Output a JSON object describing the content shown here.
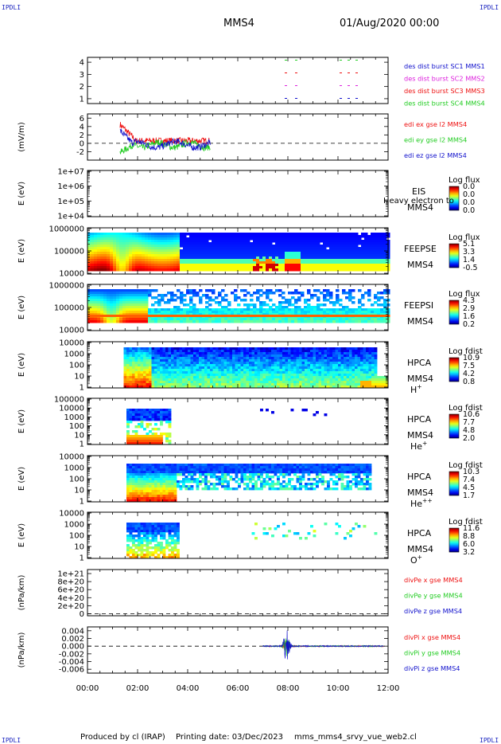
{
  "corners": {
    "top_left": "IPDLI",
    "top_right": "IPDLI",
    "bottom_left": "IPDLI",
    "bottom_right": "IPDLI"
  },
  "header": {
    "spacecraft": "MMS4",
    "datetime": "01/Aug/2020 00:00"
  },
  "footer": {
    "produced_by": "Produced by cl (IRAP)",
    "printing_date": "Printing date: 03/Dec/2023",
    "script_name": "mms_mms4_srvy_vue_web2.cl"
  },
  "colors": {
    "red": "#ee1111",
    "green": "#22cc22",
    "blue": "#1111cc",
    "magenta": "#dd22dd",
    "orange": "#ff8800"
  },
  "chart_data": [
    {
      "id": "dist",
      "type": "line",
      "ylabel": "",
      "ylim": [
        0.6,
        4.4
      ],
      "yticks": [
        "1",
        "2",
        "3",
        "4"
      ],
      "legend": [
        {
          "label": "des dist burst SC1 MMS1",
          "color": "#1111cc"
        },
        {
          "label": "des dist burst SC2 MMS2",
          "color": "#dd22dd"
        },
        {
          "label": "des dist burst SC3 MMS3",
          "color": "#ee1111"
        },
        {
          "label": "des dist burst SC4 MMS4",
          "color": "#22cc22"
        }
      ]
    },
    {
      "id": "edi",
      "type": "line",
      "ylabel": "(mV/m)",
      "ylim": [
        -4,
        7
      ],
      "yticks": [
        "6",
        "4",
        "2",
        "0",
        "-2"
      ],
      "x_hours_range": [
        1.3,
        4.9
      ],
      "legend": [
        {
          "label": "edi ex gse l2 MMS4",
          "color": "#ee1111"
        },
        {
          "label": "edi ey gse l2 MMS4",
          "color": "#22cc22"
        },
        {
          "label": "edi ez gse l2 MMS4",
          "color": "#1111cc"
        }
      ]
    },
    {
      "id": "eis",
      "type": "heatmap",
      "ylabel": "E (eV)",
      "yticks": [
        "1e+07",
        "1e+06",
        "1e+05",
        "1e+04"
      ],
      "instrument": "EIS",
      "spacecraft": "MMS4",
      "note": "Heavy electron to",
      "cbar_title": "Log flux",
      "cbar_ticks": [
        "0.0",
        "0.0",
        "0.0",
        "0.0"
      ]
    },
    {
      "id": "feepse",
      "type": "heatmap",
      "ylabel": "E (eV)",
      "yticks": [
        "1000000",
        "100000",
        "10000"
      ],
      "instrument": "FEEPSE",
      "spacecraft": "MMS4",
      "cbar_title": "Log flux",
      "cbar_ticks": [
        "5.1",
        "3.3",
        "1.4",
        "-0.5"
      ]
    },
    {
      "id": "feepsi",
      "type": "heatmap",
      "ylabel": "E (eV)",
      "yticks": [
        "1000000",
        "100000",
        "10000"
      ],
      "instrument": "FEEPSI",
      "spacecraft": "MMS4",
      "cbar_title": "Log flux",
      "cbar_ticks": [
        "4.3",
        "2.9",
        "1.6",
        "0.2"
      ]
    },
    {
      "id": "hpca_h",
      "type": "heatmap",
      "ylabel": "E (eV)",
      "yticks": [
        "10000",
        "1000",
        "100",
        "10",
        "1"
      ],
      "instrument": "HPCA",
      "spacecraft": "MMS4",
      "species": "H",
      "species_sup": "+",
      "cbar_title": "Log fdist",
      "cbar_ticks": [
        "10.9",
        "7.5",
        "4.2",
        "0.8"
      ]
    },
    {
      "id": "hpca_he",
      "type": "heatmap",
      "ylabel": "E (eV)",
      "yticks": [
        "100000",
        "10000",
        "1000",
        "100",
        "10",
        "1"
      ],
      "instrument": "HPCA",
      "spacecraft": "MMS4",
      "species": "He",
      "species_sup": "+",
      "cbar_title": "Log fdist",
      "cbar_ticks": [
        "10.6",
        "7.7",
        "4.8",
        "2.0"
      ]
    },
    {
      "id": "hpca_hepp",
      "type": "heatmap",
      "ylabel": "E (eV)",
      "yticks": [
        "10000",
        "1000",
        "100",
        "10",
        "1"
      ],
      "instrument": "HPCA",
      "spacecraft": "MMS4",
      "species": "He",
      "species_sup": "++",
      "cbar_title": "Log fdist",
      "cbar_ticks": [
        "10.3",
        "7.4",
        "4.5",
        "1.7"
      ]
    },
    {
      "id": "hpca_o",
      "type": "heatmap",
      "ylabel": "E (eV)",
      "yticks": [
        "10000",
        "1000",
        "100",
        "10",
        "1"
      ],
      "instrument": "HPCA",
      "spacecraft": "MMS4",
      "species": "O",
      "species_sup": "+",
      "cbar_title": "Log fdist",
      "cbar_ticks": [
        "11.6",
        "8.8",
        "6.0",
        "3.2"
      ]
    },
    {
      "id": "divpe",
      "type": "line",
      "ylabel": "(nPa/km)",
      "ylim": [
        -5e+19,
        1.1e+21
      ],
      "yticks": [
        "1e+21",
        "8e+20",
        "6e+20",
        "4e+20",
        "2e+20",
        "0"
      ],
      "legend": [
        {
          "label": "divPe x gse MMS4",
          "color": "#ee1111"
        },
        {
          "label": "divPe y gse MMS4",
          "color": "#22cc22"
        },
        {
          "label": "divPe z gse MMS4",
          "color": "#1111cc"
        }
      ]
    },
    {
      "id": "divpi",
      "type": "line",
      "ylabel": "(nPa/km)",
      "ylim": [
        -0.007,
        0.005
      ],
      "yticks": [
        "0.004",
        "0.002",
        "0.000",
        "-0.002",
        "-0.004",
        "-0.006"
      ],
      "burst_center_hours": 7.95,
      "legend": [
        {
          "label": "divPi x gse MMS4",
          "color": "#ee1111"
        },
        {
          "label": "divPi y gse MMS4",
          "color": "#22cc22"
        },
        {
          "label": "divPi z gse MMS4",
          "color": "#1111cc"
        }
      ]
    }
  ],
  "time_axis": {
    "labels": [
      "00:00",
      "02:00",
      "04:00",
      "06:00",
      "08:00",
      "10:00",
      "12:00"
    ],
    "range_hours": [
      0,
      12
    ]
  }
}
